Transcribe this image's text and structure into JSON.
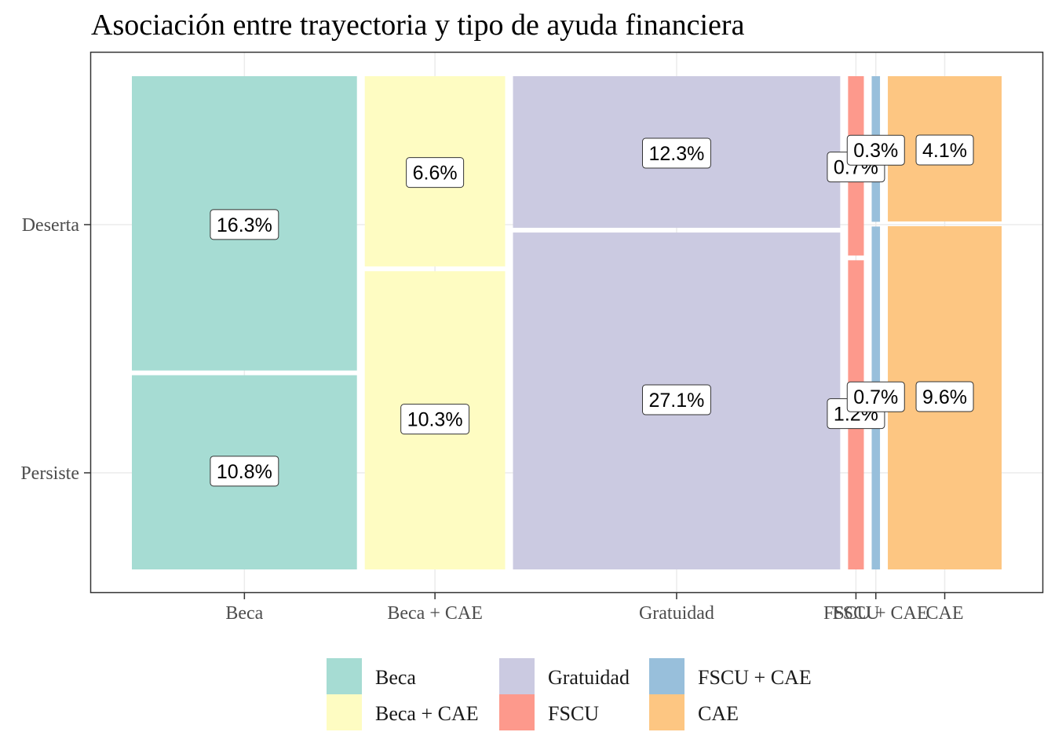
{
  "chart_data": {
    "type": "mosaic",
    "title": "Asociación entre trayectoria y tipo de ayuda financiera",
    "xlabel": "",
    "ylabel": "",
    "categories": [
      "Beca",
      "Beca + CAE",
      "Gratuidad",
      "FSCU",
      "FSCU + CAE",
      "CAE"
    ],
    "y_categories": [
      "Persiste",
      "Deserta"
    ],
    "series": [
      {
        "name": "Deserta",
        "values": [
          16.3,
          6.6,
          12.3,
          0.7,
          0.3,
          4.1
        ],
        "labels": [
          "16.3%",
          "6.6%",
          "12.3%",
          "0.7%",
          "0.3%",
          "4.1%"
        ]
      },
      {
        "name": "Persiste",
        "values": [
          10.8,
          10.3,
          27.1,
          1.2,
          0.7,
          9.6
        ],
        "labels": [
          "10.8%",
          "10.3%",
          "27.1%",
          "1.2%",
          "0.7%",
          "9.6%"
        ]
      }
    ],
    "colors": {
      "Beca": "#a6dcd3",
      "Beca + CAE": "#fefcc2",
      "Gratuidad": "#cbcae1",
      "FSCU": "#fd998c",
      "FSCU + CAE": "#98bfdb",
      "CAE": "#fdc682"
    },
    "legend": {
      "position": "bottom",
      "items": [
        "Beca",
        "Beca + CAE",
        "Gratuidad",
        "FSCU",
        "FSCU + CAE",
        "CAE"
      ]
    },
    "grid": true
  }
}
